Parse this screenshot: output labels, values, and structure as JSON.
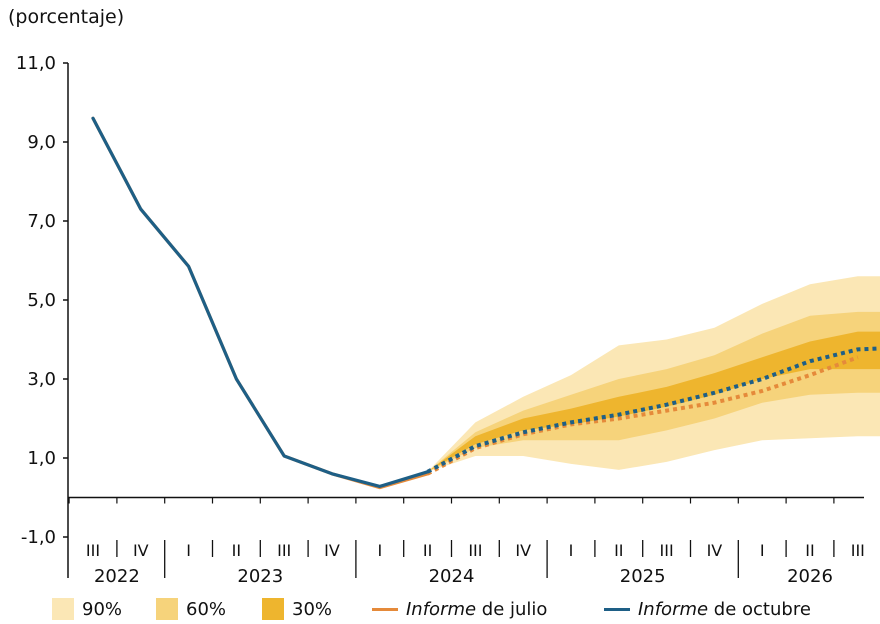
{
  "chart_data": {
    "type": "line",
    "ylabel": "(porcentaje)",
    "ylim": [
      -1.0,
      11.0
    ],
    "yticks": [
      -1.0,
      1.0,
      3.0,
      5.0,
      7.0,
      9.0,
      11.0
    ],
    "ytick_labels": [
      "-1,0",
      "1,0",
      "3,0",
      "5,0",
      "7,0",
      "9,0",
      "11,0"
    ],
    "quarters": [
      "III",
      "IV",
      "I",
      "II",
      "III",
      "IV",
      "I",
      "II",
      "III",
      "IV",
      "I",
      "II",
      "III",
      "IV",
      "I",
      "II",
      "III"
    ],
    "years": [
      {
        "label": "2022",
        "start": 0,
        "end": 1
      },
      {
        "label": "2023",
        "start": 2,
        "end": 5
      },
      {
        "label": "2024",
        "start": 6,
        "end": 9
      },
      {
        "label": "2025",
        "start": 10,
        "end": 13
      },
      {
        "label": "2026",
        "start": 14,
        "end": 16
      }
    ],
    "fan_start_index": 7,
    "bands": {
      "band90": {
        "label": "90%",
        "color": "#fbe7b5",
        "lower": [
          0.65,
          1.05,
          1.05,
          0.85,
          0.7,
          0.9,
          1.2,
          1.45,
          1.5,
          1.55,
          1.55
        ],
        "upper": [
          0.65,
          1.9,
          2.55,
          3.1,
          3.85,
          4.0,
          4.3,
          4.9,
          5.4,
          5.6,
          5.6
        ]
      },
      "band60": {
        "label": "60%",
        "color": "#f6d37b",
        "lower": [
          0.65,
          1.25,
          1.45,
          1.45,
          1.45,
          1.7,
          2.0,
          2.4,
          2.6,
          2.65,
          2.65
        ],
        "upper": [
          0.65,
          1.65,
          2.2,
          2.6,
          3.0,
          3.25,
          3.6,
          4.15,
          4.6,
          4.7,
          4.7
        ]
      },
      "band30": {
        "label": "30%",
        "color": "#eeb52e",
        "lower": [
          0.65,
          1.35,
          1.7,
          1.85,
          2.05,
          2.3,
          2.6,
          3.0,
          3.25,
          3.25,
          3.25
        ],
        "upper": [
          0.65,
          1.55,
          2.0,
          2.25,
          2.55,
          2.8,
          3.15,
          3.55,
          3.95,
          4.2,
          4.2
        ]
      }
    },
    "series": [
      {
        "name": "Informe de julio",
        "color": "#e58a3a",
        "solid": [
          9.6,
          7.3,
          5.85,
          3.0,
          1.05,
          0.6,
          0.25,
          0.6
        ],
        "dashed": [
          0.6,
          1.25,
          1.6,
          1.85,
          2.0,
          2.2,
          2.4,
          2.7,
          3.1,
          3.55,
          null
        ]
      },
      {
        "name": "Informe de octubre",
        "color": "#1e5f86",
        "solid": [
          9.6,
          7.3,
          5.85,
          3.0,
          1.05,
          0.6,
          0.28,
          0.65
        ],
        "dashed": [
          0.65,
          1.3,
          1.65,
          1.9,
          2.1,
          2.35,
          2.65,
          3.0,
          3.45,
          3.75,
          3.8
        ]
      }
    ]
  },
  "legend": {
    "band90": "90%",
    "band60": "60%",
    "band30": "30%",
    "julio_italic": "Informe",
    "julio_rest": " de julio",
    "octubre_italic": "Informe",
    "octubre_rest": " de octubre"
  }
}
